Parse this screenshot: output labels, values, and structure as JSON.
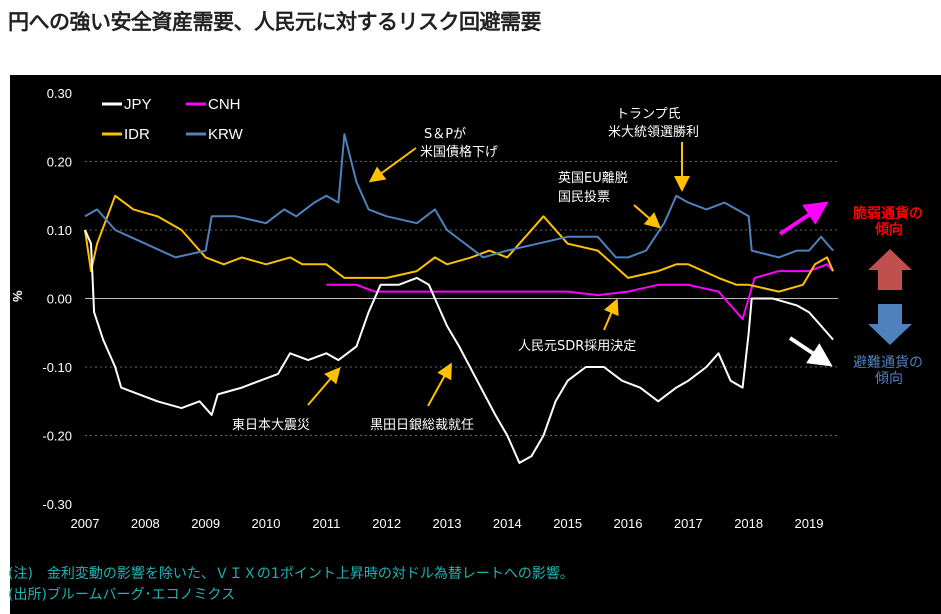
{
  "title": "円への強い安全資産需要、人民元に対するリスク回避需要",
  "chart_data": {
    "type": "line",
    "title": "円への強い安全資産需要、人民元に対するリスク回避需要",
    "ylabel": "%",
    "xlabel": "",
    "xlim": [
      2007,
      2019.45
    ],
    "ylim": [
      -0.3,
      0.3
    ],
    "yticks": [
      "0.30",
      "0.20",
      "0.10",
      "0.00",
      "-0.10",
      "-0.20",
      "-0.30"
    ],
    "yticks_values": [
      0.3,
      0.2,
      0.1,
      0,
      -0.1,
      -0.2,
      -0.3
    ],
    "xticks": [
      "2007",
      "2008",
      "2009",
      "2010",
      "2011",
      "2012",
      "2013",
      "2014",
      "2015",
      "2016",
      "2017",
      "2018",
      "2019"
    ],
    "legend_position": "top-left",
    "series": [
      {
        "name": "JPY",
        "color": "#ffffff",
        "points": [
          [
            2007.0,
            0.1
          ],
          [
            2007.1,
            0.08
          ],
          [
            2007.15,
            -0.02
          ],
          [
            2007.3,
            -0.06
          ],
          [
            2007.5,
            -0.1
          ],
          [
            2007.6,
            -0.13
          ],
          [
            2007.9,
            -0.14
          ],
          [
            2008.2,
            -0.15
          ],
          [
            2008.6,
            -0.16
          ],
          [
            2008.9,
            -0.15
          ],
          [
            2009.1,
            -0.17
          ],
          [
            2009.2,
            -0.14
          ],
          [
            2009.6,
            -0.13
          ],
          [
            2009.9,
            -0.12
          ],
          [
            2010.2,
            -0.11
          ],
          [
            2010.4,
            -0.08
          ],
          [
            2010.7,
            -0.09
          ],
          [
            2011.0,
            -0.08
          ],
          [
            2011.2,
            -0.09
          ],
          [
            2011.5,
            -0.07
          ],
          [
            2011.7,
            -0.02
          ],
          [
            2011.9,
            0.02
          ],
          [
            2012.2,
            0.02
          ],
          [
            2012.5,
            0.03
          ],
          [
            2012.7,
            0.02
          ],
          [
            2012.8,
            0.0
          ],
          [
            2013.0,
            -0.04
          ],
          [
            2013.2,
            -0.07
          ],
          [
            2013.5,
            -0.12
          ],
          [
            2013.8,
            -0.17
          ],
          [
            2014.0,
            -0.2
          ],
          [
            2014.2,
            -0.24
          ],
          [
            2014.4,
            -0.23
          ],
          [
            2014.6,
            -0.2
          ],
          [
            2014.8,
            -0.15
          ],
          [
            2015.0,
            -0.12
          ],
          [
            2015.3,
            -0.1
          ],
          [
            2015.6,
            -0.1
          ],
          [
            2015.9,
            -0.12
          ],
          [
            2016.2,
            -0.13
          ],
          [
            2016.5,
            -0.15
          ],
          [
            2016.8,
            -0.13
          ],
          [
            2017.0,
            -0.12
          ],
          [
            2017.3,
            -0.1
          ],
          [
            2017.5,
            -0.08
          ],
          [
            2017.7,
            -0.12
          ],
          [
            2017.9,
            -0.13
          ],
          [
            2018.0,
            -0.05
          ],
          [
            2018.05,
            0.0
          ],
          [
            2018.4,
            0.0
          ],
          [
            2018.8,
            -0.01
          ],
          [
            2019.0,
            -0.02
          ],
          [
            2019.2,
            -0.04
          ],
          [
            2019.4,
            -0.06
          ]
        ]
      },
      {
        "name": "CNH",
        "color": "#ff00ff",
        "points": [
          [
            2011.0,
            0.02
          ],
          [
            2011.5,
            0.02
          ],
          [
            2011.8,
            0.01
          ],
          [
            2012.0,
            0.01
          ],
          [
            2013.0,
            0.01
          ],
          [
            2014.0,
            0.01
          ],
          [
            2014.7,
            0.01
          ],
          [
            2015.0,
            0.01
          ],
          [
            2015.5,
            0.005
          ],
          [
            2016.0,
            0.01
          ],
          [
            2016.5,
            0.02
          ],
          [
            2017.0,
            0.02
          ],
          [
            2017.5,
            0.01
          ],
          [
            2017.7,
            -0.01
          ],
          [
            2017.9,
            -0.03
          ],
          [
            2018.1,
            0.03
          ],
          [
            2018.5,
            0.04
          ],
          [
            2019.0,
            0.04
          ],
          [
            2019.3,
            0.05
          ],
          [
            2019.4,
            0.04
          ]
        ]
      },
      {
        "name": "IDR",
        "color": "#ffc000",
        "points": [
          [
            2007.0,
            0.1
          ],
          [
            2007.1,
            0.04
          ],
          [
            2007.2,
            0.08
          ],
          [
            2007.5,
            0.15
          ],
          [
            2007.8,
            0.13
          ],
          [
            2008.2,
            0.12
          ],
          [
            2008.6,
            0.1
          ],
          [
            2009.0,
            0.06
          ],
          [
            2009.3,
            0.05
          ],
          [
            2009.6,
            0.06
          ],
          [
            2010.0,
            0.05
          ],
          [
            2010.4,
            0.06
          ],
          [
            2010.6,
            0.05
          ],
          [
            2011.0,
            0.05
          ],
          [
            2011.3,
            0.03
          ],
          [
            2011.6,
            0.03
          ],
          [
            2012.0,
            0.03
          ],
          [
            2012.5,
            0.04
          ],
          [
            2012.8,
            0.06
          ],
          [
            2013.0,
            0.05
          ],
          [
            2013.4,
            0.06
          ],
          [
            2013.7,
            0.07
          ],
          [
            2014.0,
            0.06
          ],
          [
            2014.3,
            0.09
          ],
          [
            2014.6,
            0.12
          ],
          [
            2015.0,
            0.08
          ],
          [
            2015.5,
            0.07
          ],
          [
            2016.0,
            0.03
          ],
          [
            2016.5,
            0.04
          ],
          [
            2016.8,
            0.05
          ],
          [
            2017.0,
            0.05
          ],
          [
            2017.5,
            0.03
          ],
          [
            2017.8,
            0.02
          ],
          [
            2018.0,
            0.02
          ],
          [
            2018.5,
            0.01
          ],
          [
            2018.9,
            0.02
          ],
          [
            2019.1,
            0.05
          ],
          [
            2019.3,
            0.06
          ],
          [
            2019.4,
            0.04
          ]
        ]
      },
      {
        "name": "KRW",
        "color": "#4f81bd",
        "points": [
          [
            2007.0,
            0.12
          ],
          [
            2007.2,
            0.13
          ],
          [
            2007.5,
            0.1
          ],
          [
            2008.0,
            0.08
          ],
          [
            2008.5,
            0.06
          ],
          [
            2009.0,
            0.07
          ],
          [
            2009.1,
            0.12
          ],
          [
            2009.5,
            0.12
          ],
          [
            2010.0,
            0.11
          ],
          [
            2010.3,
            0.13
          ],
          [
            2010.5,
            0.12
          ],
          [
            2010.8,
            0.14
          ],
          [
            2011.0,
            0.15
          ],
          [
            2011.2,
            0.14
          ],
          [
            2011.3,
            0.24
          ],
          [
            2011.5,
            0.17
          ],
          [
            2011.7,
            0.13
          ],
          [
            2012.0,
            0.12
          ],
          [
            2012.5,
            0.11
          ],
          [
            2012.8,
            0.13
          ],
          [
            2013.0,
            0.1
          ],
          [
            2013.3,
            0.08
          ],
          [
            2013.6,
            0.06
          ],
          [
            2014.0,
            0.07
          ],
          [
            2014.5,
            0.08
          ],
          [
            2015.0,
            0.09
          ],
          [
            2015.5,
            0.09
          ],
          [
            2015.8,
            0.06
          ],
          [
            2016.0,
            0.06
          ],
          [
            2016.3,
            0.07
          ],
          [
            2016.6,
            0.11
          ],
          [
            2016.8,
            0.15
          ],
          [
            2017.0,
            0.14
          ],
          [
            2017.3,
            0.13
          ],
          [
            2017.6,
            0.14
          ],
          [
            2017.8,
            0.13
          ],
          [
            2018.0,
            0.12
          ],
          [
            2018.05,
            0.07
          ],
          [
            2018.5,
            0.06
          ],
          [
            2018.8,
            0.07
          ],
          [
            2019.0,
            0.07
          ],
          [
            2019.2,
            0.09
          ],
          [
            2019.4,
            0.07
          ]
        ]
      }
    ],
    "annotations": [
      {
        "lines": [
          "S＆Pが",
          "米国債格下げ"
        ]
      },
      {
        "lines": [
          "トランプ氏",
          "米大統領選勝利"
        ]
      },
      {
        "lines": [
          "英国EU離脱",
          "国民投票"
        ]
      },
      {
        "lines": [
          "人民元SDR採用決定"
        ]
      },
      {
        "lines": [
          "東日本大震災"
        ]
      },
      {
        "lines": [
          "黒田日銀総裁就任"
        ]
      }
    ]
  },
  "side_labels": {
    "fragile": {
      "lines": [
        "脆弱通貨の",
        "傾向"
      ],
      "color": "#ff0000"
    },
    "safe": {
      "lines": [
        "避難通貨の",
        "傾向"
      ],
      "color": "#4f81bd"
    },
    "up_arrow_color": "#c0504d",
    "down_arrow_color": "#4f81bd"
  },
  "notes": {
    "note": "(注)　金利変動の影響を除いた、ＶＩＸの1ポイント上昇時の対ドル為替レートへの影響。",
    "source": "(出所)ブルームバーグ･エコノミクス"
  }
}
